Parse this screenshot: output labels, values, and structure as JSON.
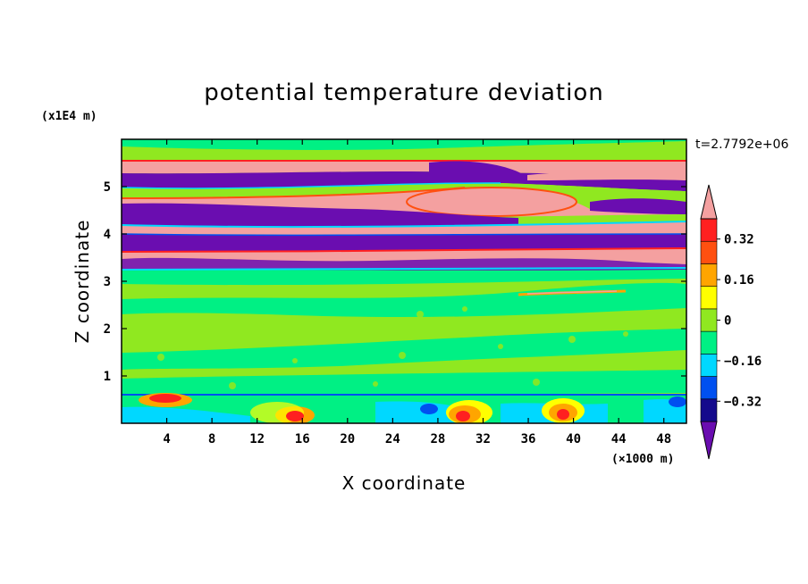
{
  "chart_data": {
    "type": "heatmap",
    "title": "potential temperature deviation",
    "xlabel": "X coordinate",
    "ylabel": "Z coordinate",
    "x_unit": "(×1000 m)",
    "y_unit": "(x1E4 m)",
    "time_label": "t=2.7792e+06",
    "xlim": [
      0,
      50
    ],
    "ylim": [
      0,
      6
    ],
    "x_ticks": [
      4,
      8,
      12,
      16,
      20,
      24,
      28,
      32,
      36,
      40,
      44,
      48
    ],
    "y_ticks": [
      1,
      2,
      3,
      4,
      5
    ],
    "colorbar": {
      "levels": [
        -0.48,
        -0.4,
        -0.32,
        -0.24,
        -0.16,
        -0.08,
        0,
        0.08,
        0.16,
        0.24,
        0.32,
        0.4,
        0.48
      ],
      "labeled_values": [
        0.32,
        0.16,
        0,
        -0.16,
        -0.32
      ],
      "labels": [
        "0.32",
        "0.16",
        "0",
        "−0.16",
        "−0.32"
      ],
      "colors": [
        "#6a0db0",
        "#140a8c",
        "#0050f0",
        "#00d8ff",
        "#00f084",
        "#90e820",
        "#ffff00",
        "#ffa500",
        "#ff5010",
        "#ff2020",
        "#f4a0a0"
      ],
      "extend": "both"
    },
    "grid": false,
    "legend": "right-colorbar"
  }
}
